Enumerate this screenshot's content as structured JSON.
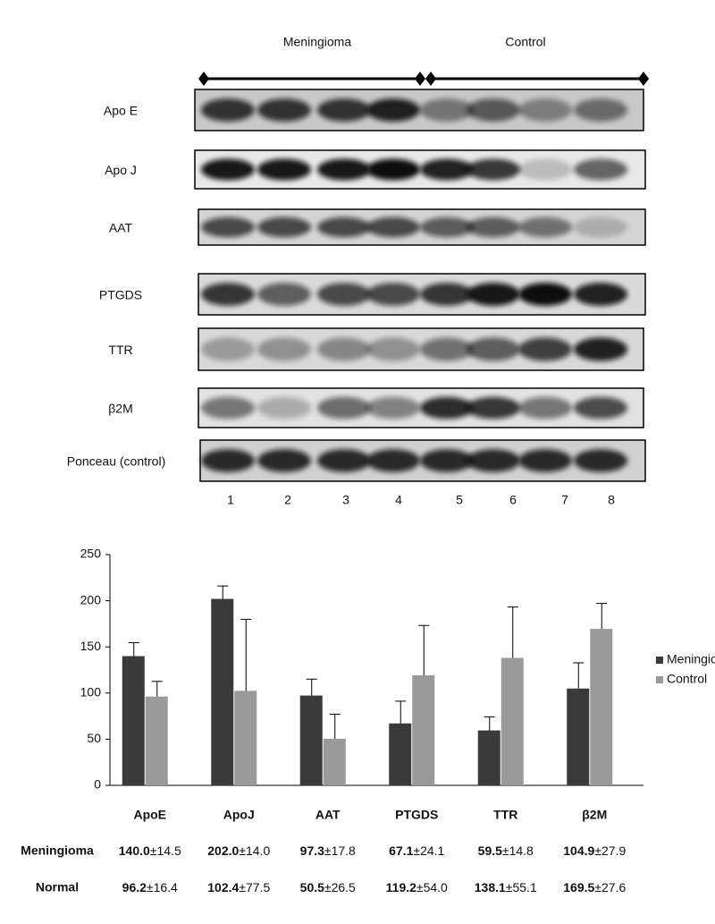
{
  "blot": {
    "groups": [
      "Meningioma",
      "Control"
    ],
    "rows": [
      "Apo E",
      "Apo J",
      "AAT",
      "PTGDS",
      "TTR",
      "β2M",
      "Ponceau (control)"
    ],
    "lanes": [
      "1",
      "2",
      "3",
      "4",
      "5",
      "6",
      "7",
      "8"
    ]
  },
  "chart_data": {
    "type": "bar",
    "categories": [
      "ApoE",
      "ApoJ",
      "AAT",
      "PTGDS",
      "TTR",
      "β2M"
    ],
    "series": [
      {
        "name": "Meningioma",
        "color": "#3a3a3a",
        "values": [
          140.0,
          202.0,
          97.3,
          67.1,
          59.5,
          104.9
        ],
        "errors": [
          14.5,
          14.0,
          17.8,
          24.1,
          14.8,
          27.9
        ]
      },
      {
        "name": "Control",
        "color": "#9a9a9a",
        "values": [
          96.2,
          102.4,
          50.5,
          119.2,
          138.1,
          169.5
        ],
        "errors": [
          16.4,
          77.5,
          26.5,
          54.0,
          55.1,
          27.6
        ]
      }
    ],
    "ylim": [
      0,
      250
    ],
    "yticks": [
      0,
      50,
      100,
      150,
      200,
      250
    ],
    "legend": "right",
    "table": {
      "rows": [
        {
          "label": "Meningioma",
          "cells": [
            {
              "mean": "140.0",
              "sd": "±14.5"
            },
            {
              "mean": "202.0",
              "sd": "±14.0"
            },
            {
              "mean": "97.3",
              "sd": "±17.8"
            },
            {
              "mean": "67.1",
              "sd": "±24.1"
            },
            {
              "mean": "59.5",
              "sd": "±14.8"
            },
            {
              "mean": "104.9",
              "sd": "±27.9"
            }
          ]
        },
        {
          "label": "Normal",
          "cells": [
            {
              "mean": "96.2",
              "sd": "±16.4"
            },
            {
              "mean": "102.4",
              "sd": "±77.5"
            },
            {
              "mean": "50.5",
              "sd": "±26.5"
            },
            {
              "mean": "119.2",
              "sd": "±54.0"
            },
            {
              "mean": "138.1",
              "sd": "±55.1"
            },
            {
              "mean": "169.5",
              "sd": "±27.6"
            }
          ]
        }
      ]
    }
  }
}
